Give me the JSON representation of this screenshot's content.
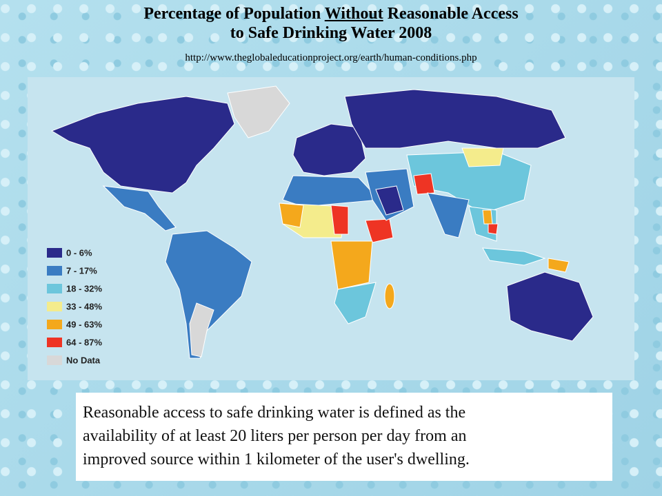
{
  "title": {
    "line1": [
      "Percentage of Population",
      "Without",
      "Reasonable Access"
    ],
    "line2": "to Safe Drinking Water 2008"
  },
  "source_url": "http://www.theglobaleducationproject.org/earth/human-conditions.php",
  "legend": [
    {
      "label": "0 - 6%",
      "color": "#2a2a8a"
    },
    {
      "label": "7 - 17%",
      "color": "#3a7cc2"
    },
    {
      "label": "18 - 32%",
      "color": "#6cc6dc"
    },
    {
      "label": "33 - 48%",
      "color": "#f4ec8c"
    },
    {
      "label": "49 - 63%",
      "color": "#f4a81c"
    },
    {
      "label": "64 - 87%",
      "color": "#ee3424"
    },
    {
      "label": "No Data",
      "color": "#d8d8d8"
    }
  ],
  "caption": [
    "Reasonable access to safe drinking water is defined as the",
    "availability of at least 20 liters per person per day from an",
    "improved source within 1 kilometer of the user's dwelling."
  ]
}
